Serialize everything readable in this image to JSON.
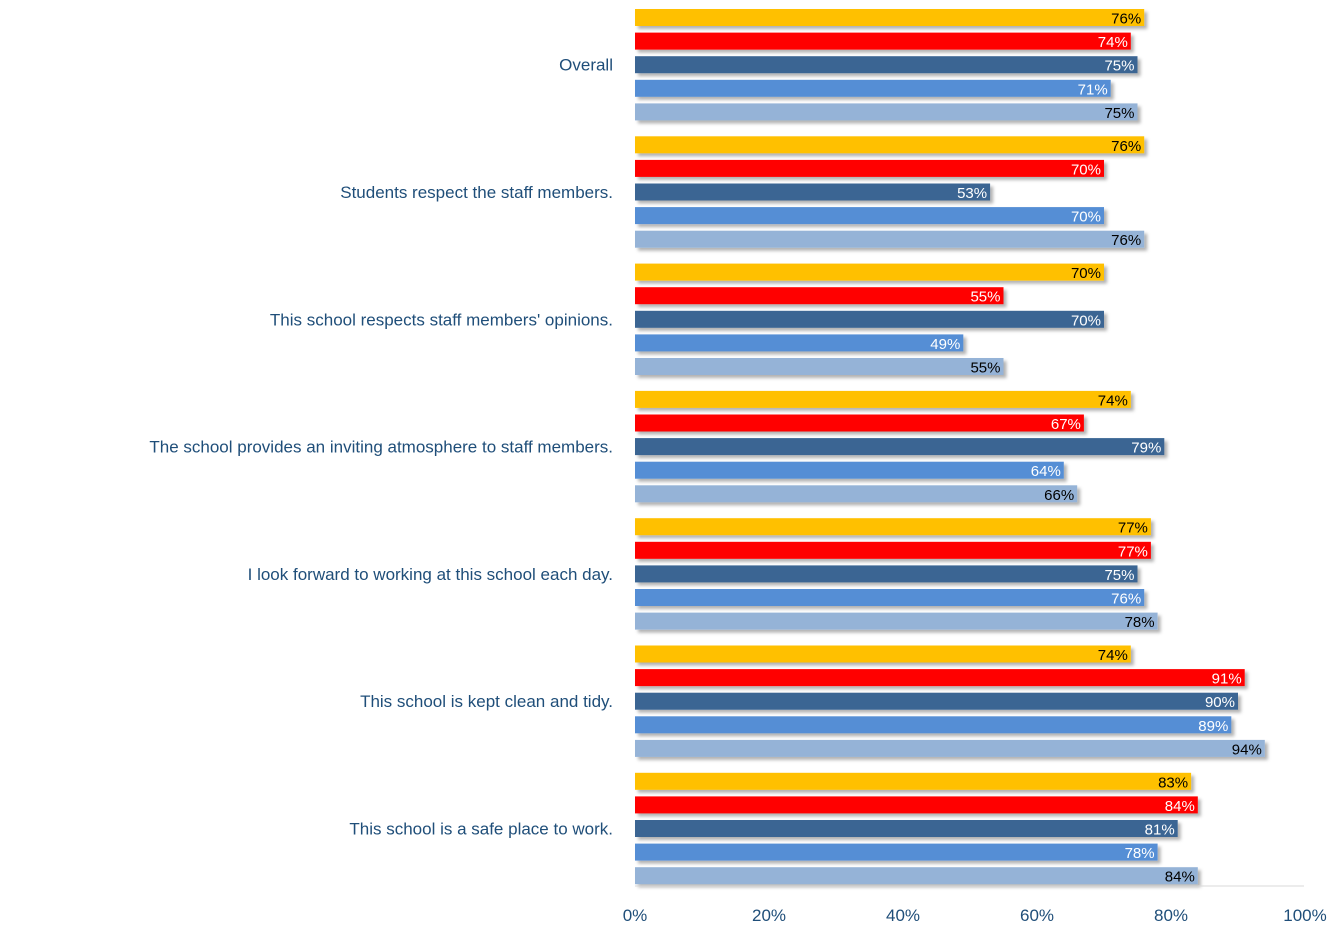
{
  "chart_data": {
    "type": "bar",
    "orientation": "horizontal",
    "categories": [
      "Overall",
      "Students respect the staff members.",
      "This school respects staff members' opinions.",
      "The school provides an inviting atmosphere to staff members.",
      "I look forward to working at this school each day.",
      "This school is kept clean and tidy.",
      "This school is a safe place to work."
    ],
    "series": [
      {
        "color": "#FFC000",
        "label_color": "#000000",
        "values": [
          76,
          76,
          70,
          74,
          77,
          74,
          83
        ]
      },
      {
        "color": "#FF0000",
        "label_color": "#FFFFFF",
        "values": [
          74,
          70,
          55,
          67,
          77,
          91,
          84
        ]
      },
      {
        "color": "#3A6593",
        "label_color": "#FFFFFF",
        "values": [
          75,
          53,
          70,
          79,
          75,
          90,
          81
        ]
      },
      {
        "color": "#558ED5",
        "label_color": "#FFFFFF",
        "values": [
          71,
          70,
          49,
          64,
          76,
          89,
          78
        ]
      },
      {
        "color": "#95B3D7",
        "label_color": "#000000",
        "values": [
          75,
          76,
          55,
          66,
          78,
          94,
          84
        ]
      }
    ],
    "value_suffix": "%",
    "xlim": [
      0,
      100
    ],
    "xticks": [
      "0%",
      "20%",
      "40%",
      "60%",
      "80%",
      "100%"
    ],
    "grid": false,
    "legend": "none",
    "title": "",
    "xlabel": "",
    "ylabel": ""
  }
}
